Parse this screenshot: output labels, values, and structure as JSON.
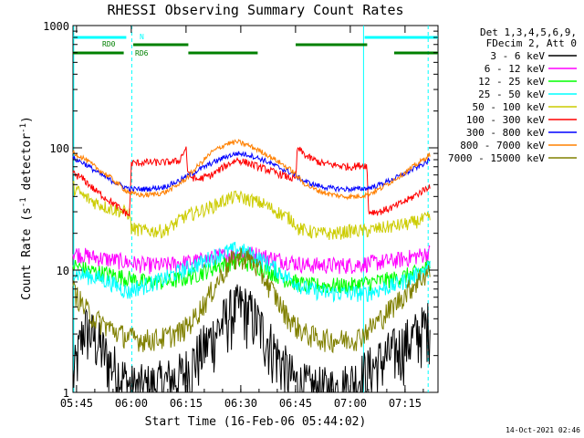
{
  "chart_data": {
    "type": "line",
    "title": "RHESSI Observing Summary Count Rates",
    "xlabel": "Start Time (16-Feb-06 05:44:02)",
    "ylabel_main": "Count Rate (s",
    "ylabel_sup1": "-1",
    "ylabel_mid": " detector",
    "ylabel_sup2": "-1",
    "ylabel_end": ")",
    "yscale": "log",
    "ylim": [
      1,
      1000
    ],
    "xlim_minutes": [
      0,
      100
    ],
    "x_ticks": [
      {
        "minute": 0.97,
        "label": "05:45"
      },
      {
        "minute": 15.97,
        "label": "06:00"
      },
      {
        "minute": 30.97,
        "label": "06:15"
      },
      {
        "minute": 45.97,
        "label": "06:30"
      },
      {
        "minute": 60.97,
        "label": "06:45"
      },
      {
        "minute": 75.97,
        "label": "07:00"
      },
      {
        "minute": 90.97,
        "label": "07:15"
      }
    ],
    "y_ticks": [
      {
        "value": 1,
        "label": "1"
      },
      {
        "value": 10,
        "label": "10"
      },
      {
        "value": 100,
        "label": "100"
      },
      {
        "value": 1000,
        "label": "1000"
      }
    ],
    "legend_header": [
      "Det 1,3,4,5,6,9,",
      "FDecim 2, Att 0"
    ],
    "legend_position": "right",
    "series": [
      {
        "name": "3 - 6 keV",
        "color": "#000000",
        "x": [
          0,
          3,
          6,
          10,
          13,
          16,
          20,
          25,
          30,
          33,
          37,
          40,
          43,
          46,
          49,
          52,
          55,
          58,
          61,
          64,
          67,
          70,
          74,
          78,
          82,
          86,
          90,
          94,
          98
        ],
        "y": [
          1.3,
          3.5,
          2.8,
          1.8,
          1.4,
          1.1,
          1.1,
          1.2,
          1.4,
          1.8,
          2.6,
          3.4,
          4.5,
          5.2,
          4.4,
          3.2,
          2.3,
          1.6,
          1.2,
          1.1,
          1.05,
          1.05,
          1.1,
          1.3,
          1.6,
          2.0,
          2.4,
          3.0,
          3.8
        ]
      },
      {
        "name": "6 - 12 keV",
        "color": "#ff00ff",
        "x": [
          0,
          4,
          8,
          12,
          16,
          20,
          25,
          30,
          35,
          40,
          45,
          50,
          55,
          58,
          61,
          64,
          70,
          76,
          82,
          88,
          94,
          98
        ],
        "y": [
          14,
          13,
          12.5,
          12,
          11.5,
          11,
          11,
          11.5,
          12,
          13,
          14,
          13.5,
          12.5,
          12,
          11.5,
          11,
          11,
          11,
          11.5,
          12,
          13,
          14
        ]
      },
      {
        "name": "12 - 25 keV",
        "color": "#00ff00",
        "x": [
          0,
          4,
          8,
          12,
          16,
          20,
          25,
          30,
          35,
          40,
          45,
          50,
          55,
          58,
          61,
          64,
          70,
          76,
          82,
          88,
          94,
          98
        ],
        "y": [
          11,
          10,
          9.5,
          9,
          8.5,
          8,
          8,
          8.5,
          9.5,
          11,
          12,
          11,
          9.5,
          8.5,
          8,
          7.5,
          7.5,
          7.5,
          8,
          8.5,
          9.5,
          11
        ]
      },
      {
        "name": "25 - 50 keV",
        "color": "#00ffff",
        "x": [
          0,
          4,
          8,
          12,
          15.5,
          16,
          20,
          25,
          30,
          35,
          40,
          45,
          50,
          55,
          58,
          61,
          64,
          70,
          76,
          80,
          80.5,
          84,
          88,
          92,
          95,
          98
        ],
        "y": [
          9.5,
          9,
          8.5,
          7.5,
          6.5,
          7,
          7.5,
          8.5,
          10,
          11.5,
          13.5,
          15,
          13,
          10.5,
          9,
          8,
          7,
          6.5,
          6.5,
          6.5,
          6.5,
          7,
          7.5,
          8.5,
          9.5,
          11
        ]
      },
      {
        "name": "50 - 100 keV",
        "color": "#cccc00",
        "x": [
          0,
          3,
          6,
          10,
          14,
          15.5,
          16,
          20,
          25,
          28,
          30,
          34,
          38,
          42,
          45,
          48,
          52,
          56,
          60,
          61,
          61.5,
          64,
          68,
          72,
          76,
          80,
          80.5,
          84,
          88,
          92,
          96,
          98
        ],
        "y": [
          48,
          40,
          36,
          32,
          30,
          29,
          22,
          21,
          21,
          24,
          27,
          30,
          33,
          38,
          40,
          38,
          35,
          30,
          26,
          24,
          22,
          21,
          20,
          20,
          21,
          21,
          21,
          22,
          23,
          24,
          26,
          27
        ]
      },
      {
        "name": "100 - 300 keV",
        "color": "#ff0000",
        "x": [
          0,
          3,
          6,
          10,
          14,
          15.5,
          16,
          20,
          25,
          29,
          31,
          31.5,
          34,
          38,
          42,
          45,
          48,
          52,
          56,
          60,
          61,
          61.5,
          64,
          68,
          72,
          76,
          79,
          80.5,
          81,
          84,
          88,
          92,
          96,
          98
        ],
        "y": [
          62,
          55,
          45,
          37,
          30,
          28,
          75,
          76,
          76,
          78,
          100,
          60,
          55,
          60,
          72,
          80,
          75,
          68,
          62,
          56,
          55,
          100,
          85,
          75,
          72,
          70,
          72,
          72,
          30,
          30,
          33,
          38,
          45,
          50
        ]
      },
      {
        "name": "300 - 800 keV",
        "color": "#0000ff",
        "x": [
          0,
          3,
          6,
          10,
          14,
          16,
          20,
          25,
          28,
          31,
          34,
          38,
          42,
          45,
          48,
          52,
          56,
          60,
          63,
          66,
          70,
          74,
          78,
          81,
          84,
          88,
          92,
          96,
          98
        ],
        "y": [
          82,
          75,
          65,
          55,
          48,
          46,
          46,
          48,
          52,
          58,
          65,
          75,
          85,
          90,
          88,
          80,
          70,
          62,
          54,
          50,
          47,
          46,
          46,
          47,
          50,
          56,
          64,
          74,
          80
        ]
      },
      {
        "name": "800 - 7000 keV",
        "color": "#ff8000",
        "x": [
          0,
          3,
          6,
          10,
          14,
          16,
          20,
          25,
          28,
          31,
          34,
          38,
          42,
          45,
          48,
          52,
          56,
          60,
          63,
          66,
          70,
          74,
          78,
          81,
          84,
          88,
          92,
          96,
          98
        ],
        "y": [
          92,
          82,
          70,
          58,
          46,
          42,
          41,
          43,
          48,
          56,
          70,
          92,
          108,
          112,
          105,
          92,
          78,
          65,
          52,
          46,
          42,
          40,
          40,
          42,
          46,
          55,
          66,
          80,
          90
        ]
      },
      {
        "name": "7000 - 15000 keV",
        "color": "#808000",
        "x": [
          0,
          3,
          6,
          10,
          13,
          16,
          20,
          25,
          30,
          33,
          37,
          40,
          43,
          46,
          49,
          52,
          55,
          58,
          61,
          64,
          67,
          70,
          74,
          78,
          82,
          86,
          90,
          94,
          98
        ],
        "y": [
          7,
          5,
          4,
          3.4,
          3,
          2.8,
          2.7,
          2.8,
          3.2,
          4,
          6,
          8.5,
          11.5,
          13,
          12,
          9,
          6.5,
          4.5,
          3.5,
          3,
          2.8,
          2.7,
          2.7,
          2.8,
          3.5,
          4.5,
          6,
          8,
          10
        ]
      }
    ],
    "annotations": [
      {
        "label": "N",
        "color": "#00ffff"
      },
      {
        "label": "RD0",
        "color": "#008000"
      },
      {
        "label": "RD6",
        "color": "#008000"
      }
    ],
    "flag_bars": [
      {
        "label": "N",
        "color": "#00ffff",
        "segments": [
          [
            0,
            14.6
          ],
          [
            79.9,
            100
          ]
        ]
      },
      {
        "label": "RD0",
        "color": "#008000",
        "segments": [
          [
            16.5,
            31.6
          ],
          [
            61.0,
            80.6
          ]
        ]
      },
      {
        "label": "RD6",
        "color": "#008000",
        "segments": [
          [
            0,
            13.9
          ],
          [
            31.6,
            50.6
          ],
          [
            88.0,
            100
          ]
        ]
      }
    ],
    "vlines_solid": [
      0.2,
      79.6
    ],
    "vlines_dashed": [
      16.1,
      97.3
    ],
    "timestamp": "14-Oct-2021 02:46"
  }
}
